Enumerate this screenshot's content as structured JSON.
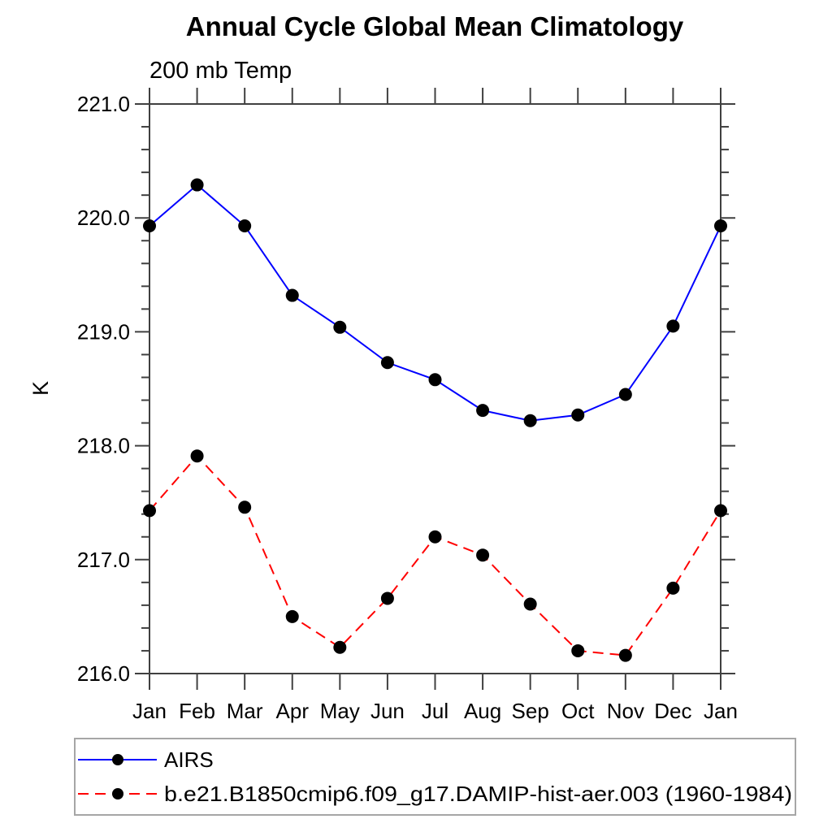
{
  "title": "Annual Cycle Global Mean Climatology",
  "subtitle": "200 mb Temp",
  "y_axis_unit": "K",
  "colors": {
    "airs_line": "#0000ff",
    "model_line": "#ff0000",
    "marker": "#000000",
    "axis": "#404040",
    "legend_border": "#a6a6a6",
    "background": "#ffffff"
  },
  "chart_data": {
    "type": "line",
    "title": "Annual Cycle Global Mean Climatology",
    "subtitle": "200 mb Temp",
    "ylabel": "K",
    "x_categories": [
      "Jan",
      "Feb",
      "Mar",
      "Apr",
      "May",
      "Jun",
      "Jul",
      "Aug",
      "Sep",
      "Oct",
      "Nov",
      "Dec",
      "Jan"
    ],
    "ylim": [
      216.0,
      221.0
    ],
    "y_major_tick_step": 1.0,
    "y_minor_tick_step": 0.2,
    "y_tick_labels": [
      "216.0",
      "217.0",
      "218.0",
      "219.0",
      "220.0",
      "221.0"
    ],
    "grid": false,
    "legend_position": "bottom-left-box",
    "series": [
      {
        "name": "AIRS",
        "color": "#0000ff",
        "line_style": "solid",
        "marker": "circle",
        "marker_color": "#000000",
        "values": [
          219.93,
          220.29,
          219.93,
          219.32,
          219.04,
          218.73,
          218.58,
          218.31,
          218.22,
          218.27,
          218.45,
          219.05,
          219.93
        ]
      },
      {
        "name": "b.e21.B1850cmip6.f09_g17.DAMIP-hist-aer.003 (1960-1984)",
        "color": "#ff0000",
        "line_style": "dashed",
        "marker": "circle",
        "marker_color": "#000000",
        "values": [
          217.43,
          217.91,
          217.46,
          216.5,
          216.23,
          216.66,
          217.2,
          217.04,
          216.61,
          216.2,
          216.16,
          216.75,
          217.43
        ]
      }
    ]
  }
}
